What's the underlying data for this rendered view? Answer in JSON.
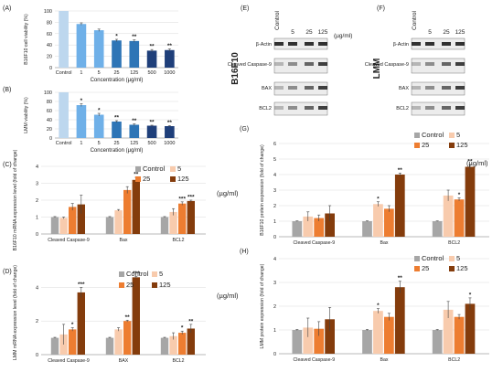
{
  "figure": {
    "panels": [
      "(A)",
      "(B)",
      "(C)",
      "(D)",
      "(E)",
      "(F)",
      "(G)",
      "(H)"
    ],
    "unit_label": "(µg/ml)",
    "blot_e_cell": "B16F10",
    "blot_f_cell": "LMM",
    "blot_lanes": [
      "Control",
      "5",
      "25",
      "125"
    ],
    "blot_rows": [
      "β-Actin",
      "Cleaved Caspase-9",
      "BAX",
      "BCL2"
    ],
    "colors": {
      "control": "#a6a6a6",
      "c5": "#f8cbad",
      "c25": "#ed7d31",
      "c125": "#843c0c",
      "viab_control": "#bdd7ee",
      "viab_light": "#6fb0e8",
      "viab_mid": "#2e75b6",
      "viab_dark": "#1f3f7a",
      "error": "#444444"
    }
  },
  "chart_data": [
    {
      "id": "A",
      "type": "bar",
      "panel_label": "(A)",
      "title": "",
      "xlabel": "Concentration (µg/ml)",
      "ylabel": "B16F10 cell viability (%)",
      "ylim": [
        0,
        100
      ],
      "yticks": [
        0,
        20,
        40,
        60,
        80,
        100
      ],
      "categories": [
        "Control",
        "1",
        "5",
        "25",
        "125",
        "500",
        "1000"
      ],
      "values": [
        100,
        77,
        66,
        48,
        47,
        30,
        31
      ],
      "errors": [
        0,
        2,
        2,
        2,
        2,
        2,
        2
      ],
      "annotations": [
        "",
        "",
        "",
        "*",
        "**",
        "**",
        "**"
      ],
      "bar_colors": [
        "viab_control",
        "viab_light",
        "viab_light",
        "viab_mid",
        "viab_mid",
        "viab_dark",
        "viab_dark"
      ]
    },
    {
      "id": "B",
      "type": "bar",
      "panel_label": "(B)",
      "title": "",
      "xlabel": "Concentration (µg/ml)",
      "ylabel": "LMM viability (%)",
      "ylim": [
        0,
        100
      ],
      "yticks": [
        0,
        20,
        40,
        60,
        80,
        100
      ],
      "categories": [
        "Control",
        "1",
        "5",
        "25",
        "125",
        "500",
        "1000"
      ],
      "values": [
        100,
        72,
        51,
        36,
        29,
        27,
        26
      ],
      "errors": [
        0,
        3,
        3,
        2,
        2,
        1,
        1
      ],
      "annotations": [
        "",
        "*",
        "*",
        "**",
        "**",
        "**",
        "**"
      ],
      "bar_colors": [
        "viab_control",
        "viab_light",
        "viab_light",
        "viab_mid",
        "viab_mid",
        "viab_dark",
        "viab_dark"
      ]
    },
    {
      "id": "C",
      "type": "bar",
      "panel_label": "(C)",
      "title": "",
      "xlabel": "",
      "ylabel": "B16F10 mRNA expression level (fold of change)",
      "ylim": [
        0,
        4
      ],
      "yticks": [
        0,
        1,
        2,
        3,
        4
      ],
      "categories": [
        "Cleaved Caspase-9",
        "Bax",
        "BCL2"
      ],
      "series": [
        {
          "name": "Control",
          "values": [
            1.0,
            1.0,
            1.0
          ],
          "errors": [
            0.03,
            0.03,
            0.03
          ],
          "annotations": [
            "",
            "",
            ""
          ]
        },
        {
          "name": "5",
          "values": [
            0.95,
            1.4,
            1.3
          ],
          "errors": [
            0.05,
            0.05,
            0.2
          ],
          "annotations": [
            "",
            "",
            ""
          ]
        },
        {
          "name": "25",
          "values": [
            1.6,
            2.6,
            1.8
          ],
          "errors": [
            0.2,
            0.2,
            0.1
          ],
          "annotations": [
            "",
            "",
            "***"
          ]
        },
        {
          "name": "125",
          "values": [
            1.75,
            3.2,
            1.95
          ],
          "errors": [
            0.55,
            0.15,
            0.05
          ],
          "annotations": [
            "",
            "**",
            "***"
          ]
        }
      ],
      "legend": [
        "Control",
        "5",
        "25",
        "125"
      ]
    },
    {
      "id": "D",
      "type": "bar",
      "panel_label": "(D)",
      "title": "",
      "xlabel": "",
      "ylabel": "LMM mRNA expression level (fold of change)",
      "ylim": [
        0,
        5
      ],
      "yticks": [
        0,
        2,
        4
      ],
      "categories": [
        "Cleaved Caspase-9",
        "BAX",
        "BCL2"
      ],
      "series": [
        {
          "name": "Control",
          "values": [
            1.0,
            1.0,
            1.0
          ],
          "errors": [
            0.03,
            0.03,
            0.03
          ],
          "annotations": [
            "",
            "",
            ""
          ]
        },
        {
          "name": "5",
          "values": [
            1.2,
            1.5,
            1.1
          ],
          "errors": [
            0.6,
            0.1,
            0.2
          ],
          "annotations": [
            "",
            "",
            ""
          ]
        },
        {
          "name": "25",
          "values": [
            1.5,
            2.0,
            1.3
          ],
          "errors": [
            0.1,
            0.05,
            0.1
          ],
          "annotations": [
            "*",
            "**",
            "*"
          ]
        },
        {
          "name": "125",
          "values": [
            3.7,
            4.6,
            1.55
          ],
          "errors": [
            0.3,
            0.05,
            0.25
          ],
          "annotations": [
            "***",
            "***",
            "**"
          ]
        }
      ],
      "legend": [
        "Control",
        "5",
        "25",
        "125"
      ]
    },
    {
      "id": "G",
      "type": "bar",
      "panel_label": "(G)",
      "title": "",
      "xlabel": "",
      "ylabel": "B16F10 protein expression (fold of change)",
      "ylim": [
        0,
        6
      ],
      "yticks": [
        0,
        1,
        2,
        3,
        4,
        5,
        6
      ],
      "categories": [
        "Cleaved Caspase-9",
        "Bax",
        "BCL2"
      ],
      "series": [
        {
          "name": "Control",
          "values": [
            1.0,
            1.0,
            1.0
          ],
          "errors": [
            0.02,
            0.02,
            0.02
          ],
          "annotations": [
            "",
            "",
            ""
          ]
        },
        {
          "name": "5",
          "values": [
            1.3,
            2.1,
            2.65
          ],
          "errors": [
            0.3,
            0.15,
            0.35
          ],
          "annotations": [
            "",
            "*",
            ""
          ]
        },
        {
          "name": "25",
          "values": [
            1.2,
            1.8,
            2.4
          ],
          "errors": [
            0.2,
            0.2,
            0.1
          ],
          "annotations": [
            "",
            "",
            "*"
          ]
        },
        {
          "name": "125",
          "values": [
            1.5,
            4.0,
            4.5
          ],
          "errors": [
            0.5,
            0.1,
            0.15
          ],
          "annotations": [
            "",
            "**",
            "**"
          ]
        }
      ],
      "legend": [
        "Control",
        "5",
        "25",
        "125"
      ]
    },
    {
      "id": "H",
      "type": "bar",
      "panel_label": "(H)",
      "title": "",
      "xlabel": "",
      "ylabel": "LMM protein expression (fold of change)",
      "ylim": [
        0,
        4
      ],
      "yticks": [
        0,
        1,
        2,
        3,
        4
      ],
      "categories": [
        "Cleaved Caspase-9",
        "Bax",
        "BCL2"
      ],
      "series": [
        {
          "name": "Control",
          "values": [
            1.0,
            1.0,
            1.0
          ],
          "errors": [
            0.02,
            0.02,
            0.02
          ],
          "annotations": [
            "",
            "",
            ""
          ]
        },
        {
          "name": "5",
          "values": [
            1.1,
            1.8,
            1.85
          ],
          "errors": [
            0.4,
            0.1,
            0.35
          ],
          "annotations": [
            "",
            "*",
            ""
          ]
        },
        {
          "name": "25",
          "values": [
            1.05,
            1.55,
            1.55
          ],
          "errors": [
            0.3,
            0.15,
            0.1
          ],
          "annotations": [
            "",
            "",
            ""
          ]
        },
        {
          "name": "125",
          "values": [
            1.45,
            2.8,
            2.1
          ],
          "errors": [
            0.5,
            0.25,
            0.25
          ],
          "annotations": [
            "",
            "**",
            "*"
          ]
        }
      ],
      "legend": [
        "Control",
        "5",
        "25",
        "125"
      ]
    }
  ]
}
